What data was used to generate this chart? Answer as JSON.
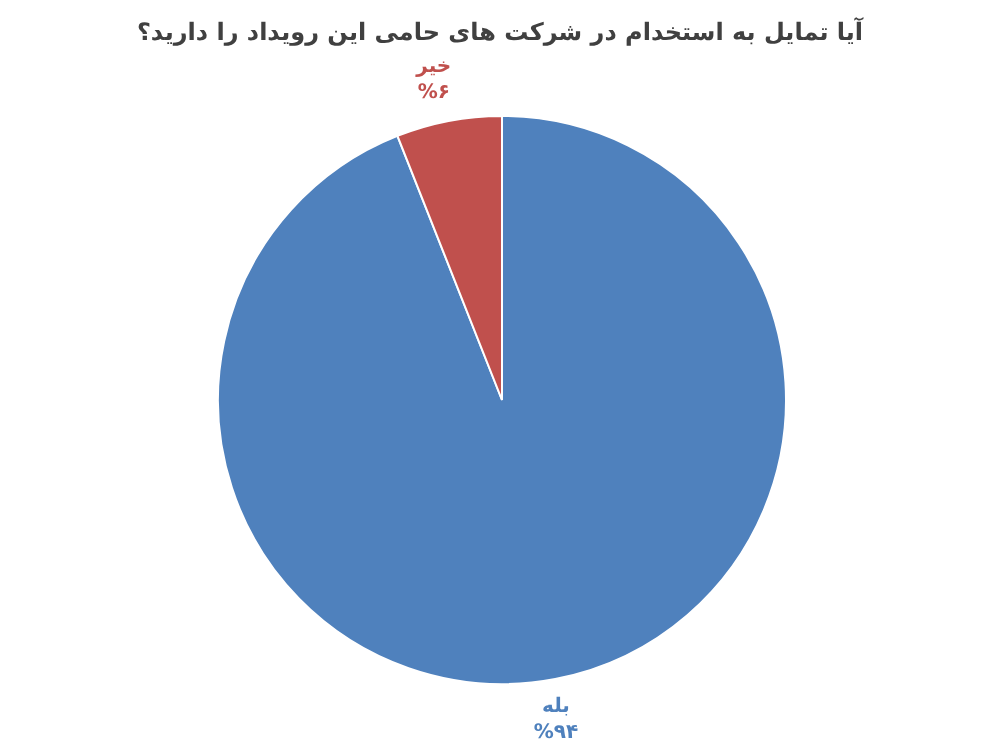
{
  "chart_data": {
    "type": "pie",
    "title": "آیا تمایل به استخدام در شرکت های حامی این رویداد را دارید؟",
    "categories": [
      "بله",
      "خیر"
    ],
    "values": [
      94,
      6
    ],
    "colors": [
      "#4f81bd",
      "#c0504d"
    ],
    "value_labels": [
      "%۹۴",
      "%۶"
    ]
  }
}
